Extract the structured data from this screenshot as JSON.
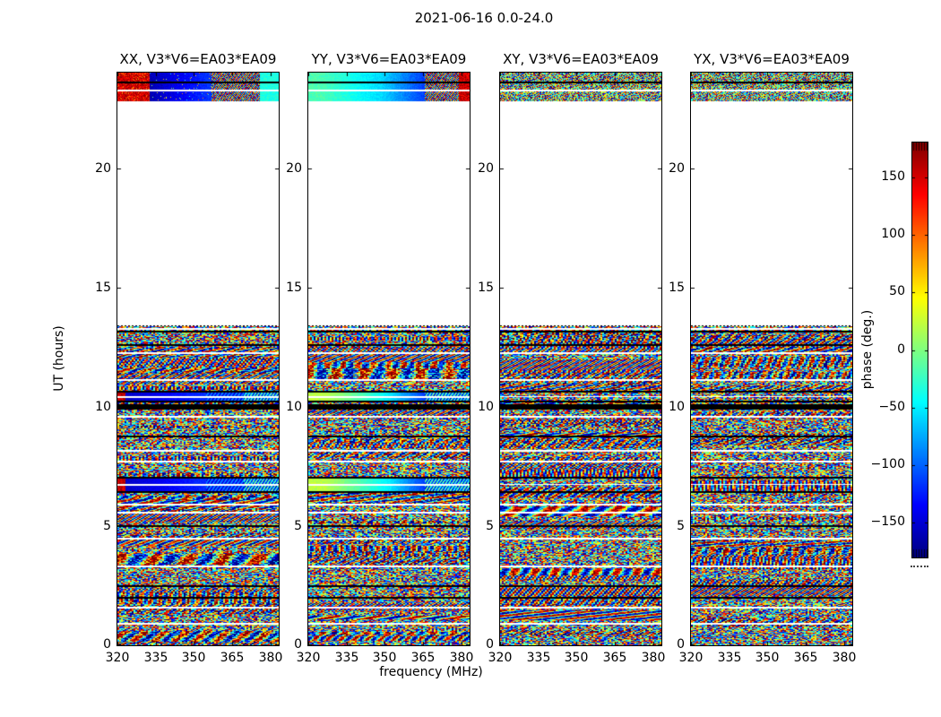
{
  "figure": {
    "suptitle": "2021-06-16 0.0-24.0",
    "xlabel": "frequency (MHz)",
    "ylabel": "UT (hours)",
    "colorbar_label": "phase (deg.)",
    "background": "#ffffff",
    "frame_color": "#000000"
  },
  "chart_data": {
    "type": "heatmap",
    "title": "2021-06-16 0.0-24.0",
    "xlabel": "frequency (MHz)",
    "ylabel": "UT (hours)",
    "colormap": "jet",
    "x_range_mhz": [
      320,
      383.5
    ],
    "x_ticks": [
      "320",
      "335",
      "350",
      "365",
      "380"
    ],
    "x_tick_values": [
      320,
      335,
      350,
      365,
      380
    ],
    "y_range_hours": [
      0,
      24
    ],
    "y_ticks": [
      "0",
      "5",
      "10",
      "15",
      "20"
    ],
    "y_tick_values": [
      0,
      5,
      10,
      15,
      20
    ],
    "grid": false,
    "legend": "none",
    "colorbar": {
      "label": "phase (deg.)",
      "range_deg": [
        -180,
        180
      ],
      "ticks": [
        "150",
        "100",
        "50",
        "0",
        "−50",
        "−100",
        "−150"
      ],
      "tick_values": [
        150,
        100,
        50,
        0,
        -50,
        -100,
        -150
      ],
      "position": "right"
    },
    "panels": [
      {
        "id": "XX",
        "title": "XX, V3*V6=EA03*EA09",
        "style": "xx"
      },
      {
        "id": "YY",
        "title": "YY, V3*V6=EA03*EA09",
        "style": "yy"
      },
      {
        "id": "XY",
        "title": "XY, V3*V6=EA03*EA09",
        "style": "cross"
      },
      {
        "id": "YX",
        "title": "YX, V3*V6=EA03*EA09",
        "style": "cross"
      }
    ],
    "regions": {
      "noise_hours": [
        0,
        13.42
      ],
      "blank_hours": [
        13.42,
        22.8
      ],
      "top_scan_hours": [
        22.8,
        24.0
      ]
    },
    "features": {
      "white_gap_hours": [
        13.3,
        12.3,
        11.15,
        9.62,
        8.2,
        7.75,
        5.95,
        5.6,
        4.5,
        3.35,
        1.62,
        0.95
      ],
      "black_line_hours": [
        13.17,
        12.62,
        8.78,
        5.03,
        2.52,
        2.02
      ],
      "thick_black_hours": [
        9.9,
        10.1
      ],
      "cal_scan_hours": [
        [
          10.25,
          10.63
        ],
        [
          6.46,
          7.02
        ]
      ]
    }
  }
}
